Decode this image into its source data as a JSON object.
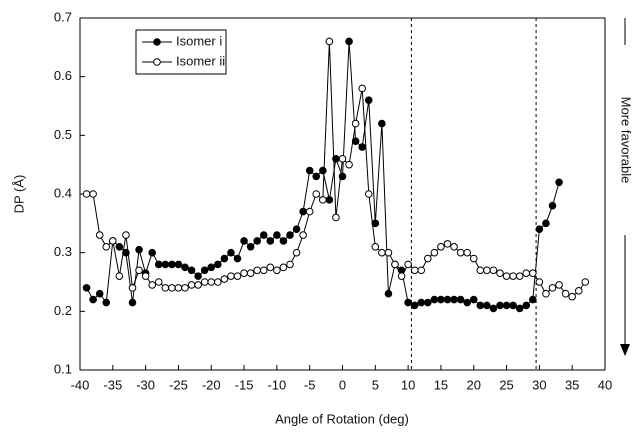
{
  "chart_data": {
    "type": "line",
    "x_label": "Angle of Rotation (deg)",
    "y_label": "DP (Å)",
    "annotation": "More favorable",
    "xlim": [
      -40,
      40
    ],
    "xticks": [
      -40,
      -35,
      -30,
      -25,
      -20,
      -15,
      -10,
      -5,
      0,
      5,
      10,
      15,
      20,
      25,
      30,
      35,
      40
    ],
    "ylim": [
      0.1,
      0.7
    ],
    "yticks": [
      0.1,
      0.2,
      0.3,
      0.4,
      0.5,
      0.6,
      0.7
    ],
    "reference_lines": [
      10.5,
      29.5
    ],
    "legend_position": "upper-left",
    "series": [
      {
        "name": "Isomer i",
        "color": "#000000",
        "marker": "filled",
        "x": [
          -39,
          -38,
          -37,
          -36,
          -35,
          -34,
          -33,
          -32,
          -31,
          -30,
          -29,
          -28,
          -27,
          -26,
          -25,
          -24,
          -23,
          -22,
          -21,
          -20,
          -19,
          -18,
          -17,
          -16,
          -15,
          -14,
          -13,
          -12,
          -11,
          -10,
          -9,
          -8,
          -7,
          -6,
          -5,
          -4,
          -3,
          -2,
          -1,
          0,
          1,
          2,
          3,
          4,
          5,
          6,
          7,
          8,
          9,
          10,
          11,
          12,
          13,
          14,
          15,
          16,
          17,
          18,
          19,
          20,
          21,
          22,
          23,
          24,
          25,
          26,
          27,
          28,
          29,
          30,
          31,
          32,
          33
        ],
        "values": [
          0.24,
          0.22,
          0.23,
          0.215,
          0.32,
          0.31,
          0.3,
          0.215,
          0.305,
          0.265,
          0.3,
          0.28,
          0.28,
          0.28,
          0.28,
          0.275,
          0.27,
          0.26,
          0.27,
          0.275,
          0.28,
          0.29,
          0.3,
          0.29,
          0.32,
          0.31,
          0.32,
          0.33,
          0.32,
          0.33,
          0.32,
          0.33,
          0.34,
          0.37,
          0.44,
          0.43,
          0.44,
          0.39,
          0.46,
          0.43,
          0.66,
          0.49,
          0.48,
          0.56,
          0.35,
          0.52,
          0.23,
          0.28,
          0.27,
          0.215,
          0.21,
          0.215,
          0.215,
          0.22,
          0.22,
          0.22,
          0.22,
          0.22,
          0.215,
          0.22,
          0.21,
          0.21,
          0.205,
          0.21,
          0.21,
          0.21,
          0.205,
          0.21,
          0.22,
          0.34,
          0.35,
          0.38,
          0.42
        ]
      },
      {
        "name": "Isomer ii",
        "color": "#000000",
        "marker": "open",
        "x": [
          -39,
          -38,
          -37,
          -36,
          -35,
          -34,
          -33,
          -32,
          -31,
          -30,
          -29,
          -28,
          -27,
          -26,
          -25,
          -24,
          -23,
          -22,
          -21,
          -20,
          -19,
          -18,
          -17,
          -16,
          -15,
          -14,
          -13,
          -12,
          -11,
          -10,
          -9,
          -8,
          -7,
          -6,
          -5,
          -4,
          -3,
          -2,
          -1,
          0,
          1,
          2,
          3,
          4,
          5,
          6,
          7,
          8,
          9,
          10,
          11,
          12,
          13,
          14,
          15,
          16,
          17,
          18,
          19,
          20,
          21,
          22,
          23,
          24,
          25,
          26,
          27,
          28,
          29,
          30,
          31,
          32,
          33,
          34,
          35,
          36,
          37
        ],
        "values": [
          0.4,
          0.4,
          0.33,
          0.31,
          0.32,
          0.26,
          0.33,
          0.24,
          0.27,
          0.26,
          0.245,
          0.25,
          0.24,
          0.24,
          0.24,
          0.24,
          0.245,
          0.245,
          0.25,
          0.25,
          0.25,
          0.255,
          0.26,
          0.26,
          0.265,
          0.265,
          0.27,
          0.27,
          0.275,
          0.27,
          0.275,
          0.28,
          0.3,
          0.33,
          0.37,
          0.4,
          0.39,
          0.66,
          0.36,
          0.46,
          0.45,
          0.52,
          0.58,
          0.4,
          0.31,
          0.3,
          0.3,
          0.28,
          0.26,
          0.28,
          0.27,
          0.27,
          0.29,
          0.3,
          0.31,
          0.315,
          0.31,
          0.3,
          0.3,
          0.29,
          0.27,
          0.27,
          0.27,
          0.265,
          0.26,
          0.26,
          0.26,
          0.265,
          0.265,
          0.25,
          0.23,
          0.24,
          0.245,
          0.23,
          0.225,
          0.235,
          0.25
        ]
      }
    ]
  }
}
